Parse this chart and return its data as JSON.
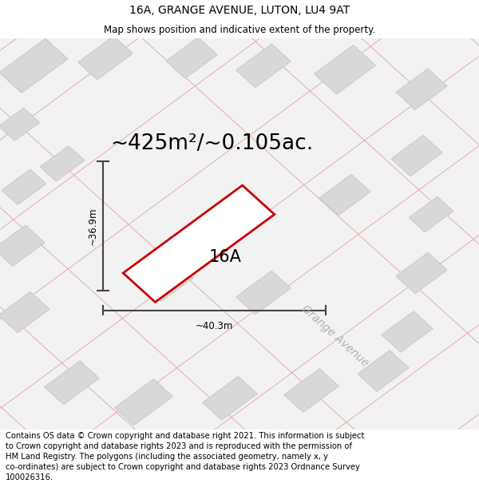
{
  "title": "16A, GRANGE AVENUE, LUTON, LU4 9AT",
  "subtitle": "Map shows position and indicative extent of the property.",
  "area_label": "~425m²/~0.105ac.",
  "plot_label": "16A",
  "dim_h": "~36.9m",
  "dim_w": "~40.3m",
  "street_label": "Grange Avenue",
  "footer": "Contains OS data © Crown copyright and database right 2021. This information is subject to Crown copyright and database rights 2023 and is reproduced with the permission of HM Land Registry. The polygons (including the associated geometry, namely x, y co-ordinates) are subject to Crown copyright and database rights 2023 Ordnance Survey 100026316.",
  "map_bg": "#f2f2f2",
  "plot_fill": "#ffffff",
  "plot_edge": "#cc0000",
  "building_fill": "#d8d8d8",
  "building_edge": "#c8c8c8",
  "road_line": "#e8a8a8",
  "dim_line_color": "#444444",
  "title_fontsize": 10,
  "subtitle_fontsize": 8.5,
  "area_fontsize": 19,
  "plot_label_fontsize": 15,
  "footer_fontsize": 7.2,
  "street_fontsize": 10,
  "dim_fontsize": 8.5
}
